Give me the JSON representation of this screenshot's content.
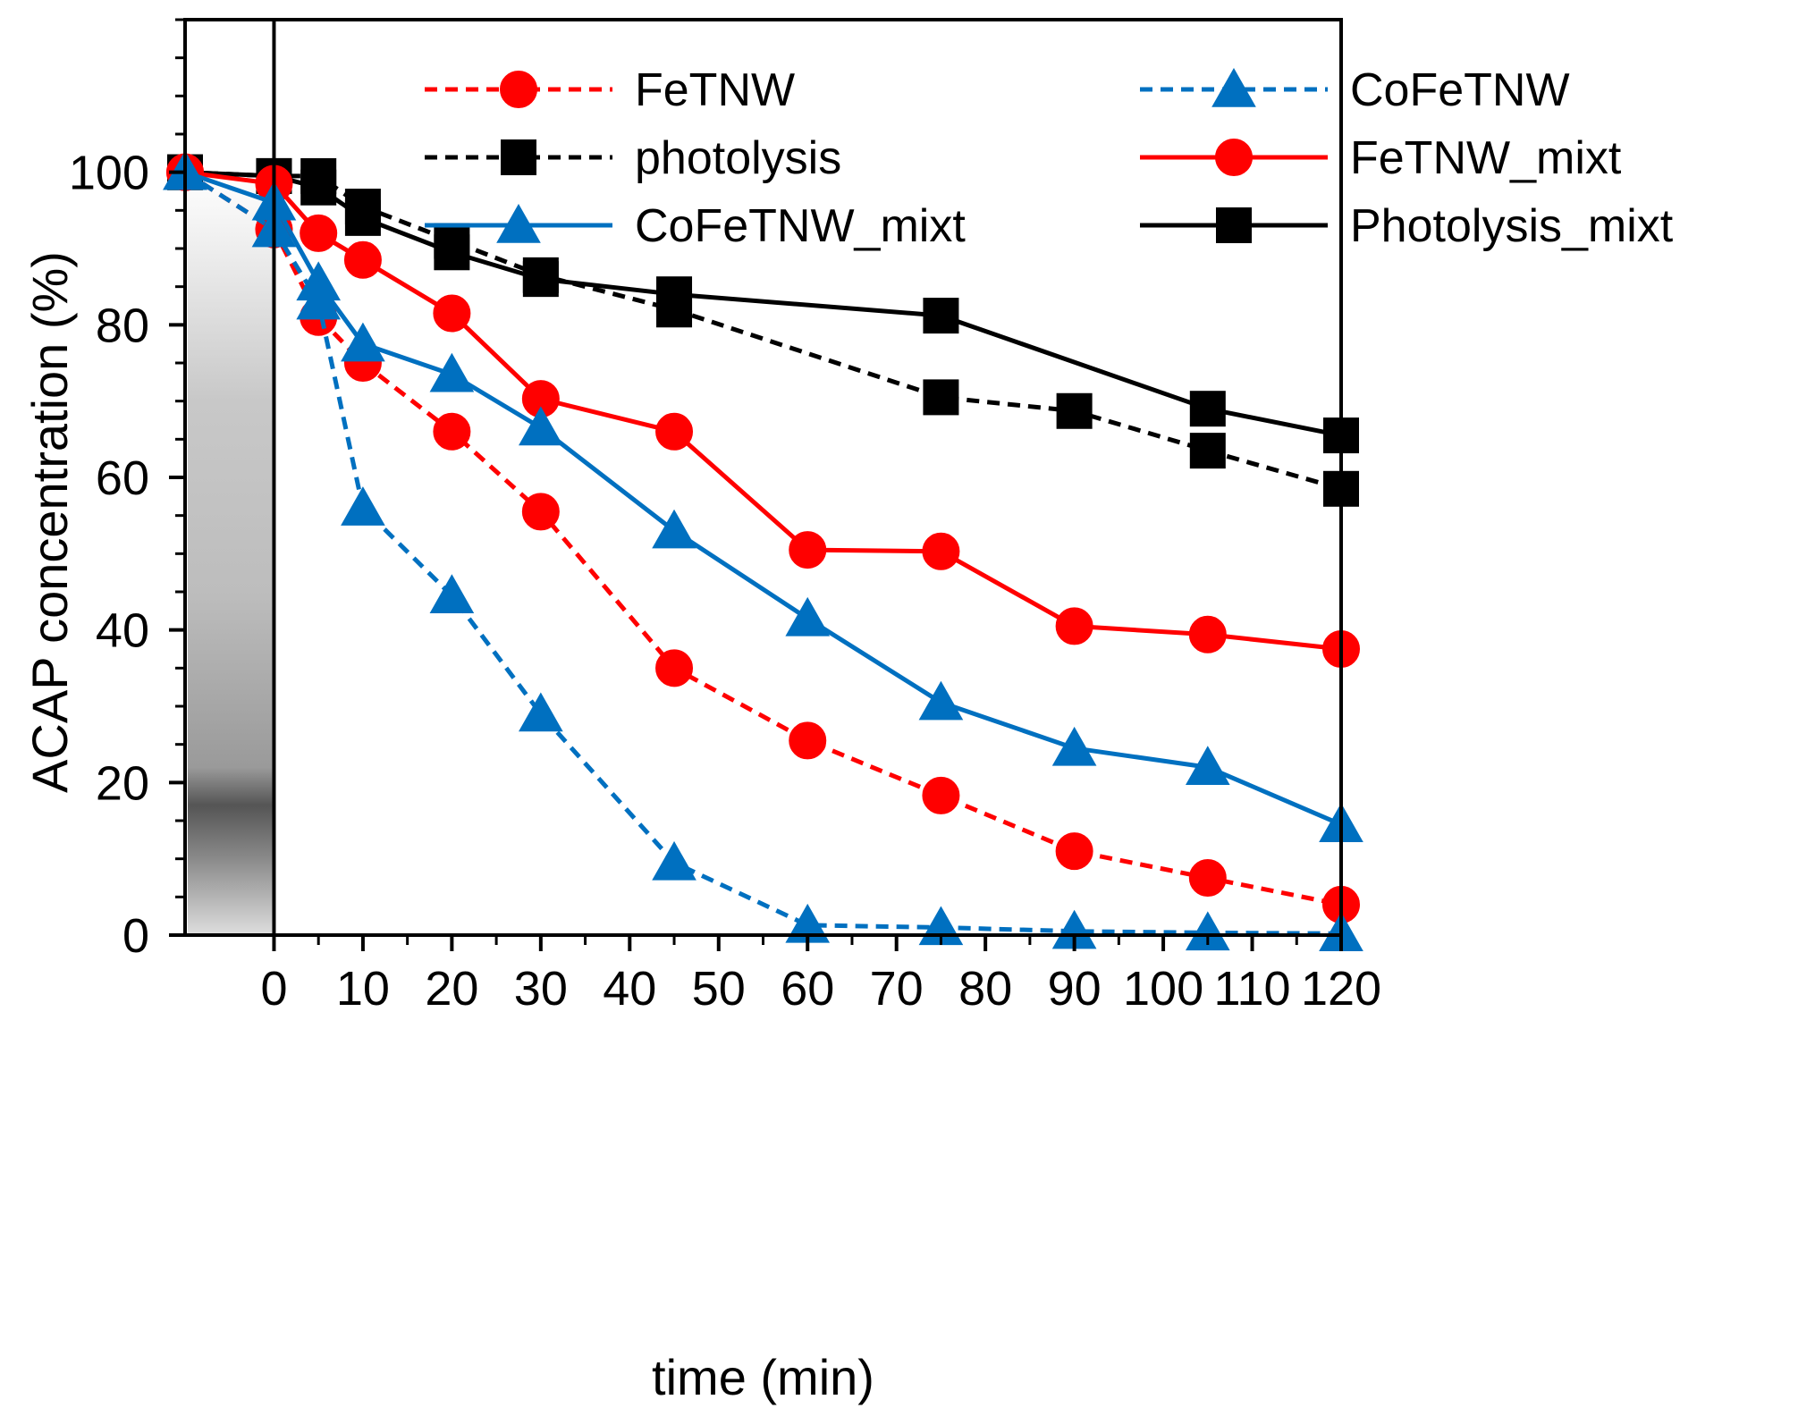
{
  "chart_data": {
    "type": "line",
    "xlabel": "time (min)",
    "ylabel": "ACAP concentration (%)",
    "xlim": [
      -10,
      120
    ],
    "ylim": [
      0,
      120
    ],
    "x_ticks": [
      0,
      10,
      20,
      30,
      40,
      50,
      60,
      70,
      80,
      90,
      100,
      110,
      120
    ],
    "y_ticks": [
      0,
      20,
      40,
      60,
      80,
      100
    ],
    "x_tick_labels": [
      "0",
      "10",
      "20",
      "30",
      "40",
      "50",
      "60",
      "70",
      "80",
      "90",
      "100",
      "110",
      "120"
    ],
    "y_tick_labels": [
      "0",
      "20",
      "40",
      "60",
      "80",
      "100"
    ],
    "grid": false,
    "legend_position": "top",
    "shaded_region": {
      "x_from": -10,
      "x_to": 0,
      "style": "gray gradient (dark band near 17%)"
    },
    "series": [
      {
        "name": "FeTNW",
        "color": "#ff0000",
        "dash": "dashed",
        "marker": "circle",
        "x": [
          -10,
          0,
          5,
          10,
          20,
          30,
          45,
          60,
          75,
          90,
          105,
          120
        ],
        "y": [
          100,
          92.5,
          81,
          75,
          66,
          55.5,
          35,
          25.5,
          18.3,
          11,
          7.5,
          4
        ]
      },
      {
        "name": "CoFeTNW",
        "color": "#0070c0",
        "dash": "dashed",
        "marker": "triangle",
        "x": [
          -10,
          0,
          5,
          10,
          20,
          30,
          45,
          60,
          75,
          90,
          105,
          120
        ],
        "y": [
          100,
          92.5,
          83,
          56,
          44.5,
          29,
          9.5,
          1.3,
          1,
          0.5,
          0.3,
          0.2
        ]
      },
      {
        "name": "photolysis",
        "color": "#000000",
        "dash": "dashed",
        "marker": "square",
        "x": [
          -10,
          0,
          5,
          10,
          20,
          30,
          45,
          75,
          90,
          105,
          120
        ],
        "y": [
          100,
          99.5,
          99.5,
          95.5,
          91,
          86.5,
          82,
          70.5,
          68.7,
          63.5,
          58.5
        ]
      },
      {
        "name": "FeTNW_mixt",
        "color": "#ff0000",
        "dash": "solid",
        "marker": "circle",
        "x": [
          -10,
          0,
          5,
          10,
          20,
          30,
          45,
          60,
          75,
          90,
          105,
          120
        ],
        "y": [
          100,
          98.5,
          92,
          88.5,
          81.5,
          70.3,
          66,
          50.5,
          50.3,
          40.5,
          39.4,
          37.5
        ]
      },
      {
        "name": "CoFeTNW_mixt",
        "color": "#0070c0",
        "dash": "solid",
        "marker": "triangle",
        "x": [
          -10,
          0,
          5,
          10,
          20,
          30,
          45,
          60,
          75,
          90,
          105,
          120
        ],
        "y": [
          100,
          96,
          85.5,
          77.5,
          73.5,
          66.5,
          53,
          41.5,
          30.5,
          24.5,
          22,
          14.5
        ]
      },
      {
        "name": "Photolysis_mixt",
        "color": "#000000",
        "dash": "solid",
        "marker": "square",
        "x": [
          -10,
          0,
          5,
          10,
          20,
          30,
          45,
          75,
          105,
          120
        ],
        "y": [
          100,
          99.5,
          98,
          94,
          89.5,
          86,
          84,
          81.2,
          69,
          65.5
        ]
      }
    ]
  }
}
